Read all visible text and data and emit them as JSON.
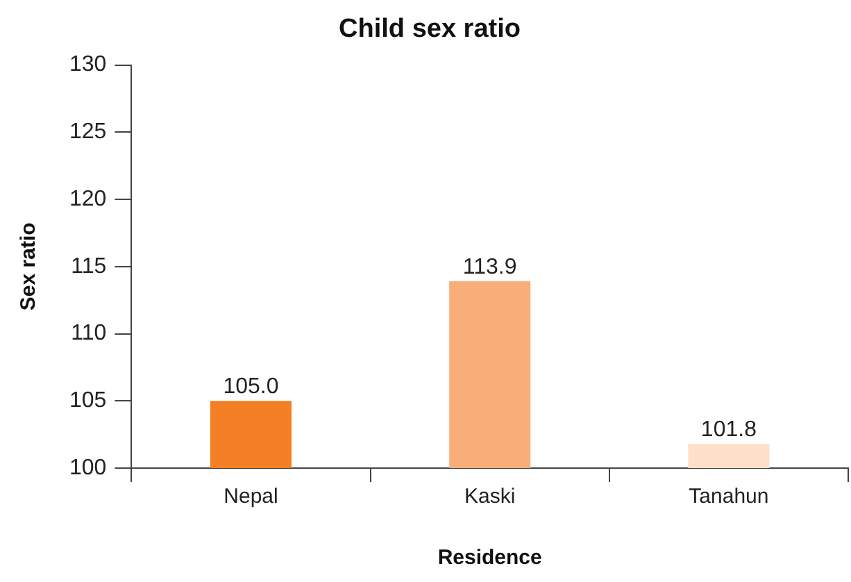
{
  "chart_data": {
    "type": "bar",
    "title": "Child sex ratio",
    "xlabel": "Residence",
    "ylabel": "Sex ratio",
    "categories": [
      "Nepal",
      "Kaski",
      "Tanahun"
    ],
    "values": [
      105.0,
      113.9,
      101.8
    ],
    "colors": [
      "#f47f24",
      "#f9ad78",
      "#fde0c7"
    ],
    "value_labels": [
      "105.0",
      "113.9",
      "101.8"
    ],
    "ylim": [
      100,
      130
    ],
    "yticks": [
      100,
      105,
      110,
      115,
      120,
      125,
      130
    ],
    "grid": false,
    "legend": false
  }
}
